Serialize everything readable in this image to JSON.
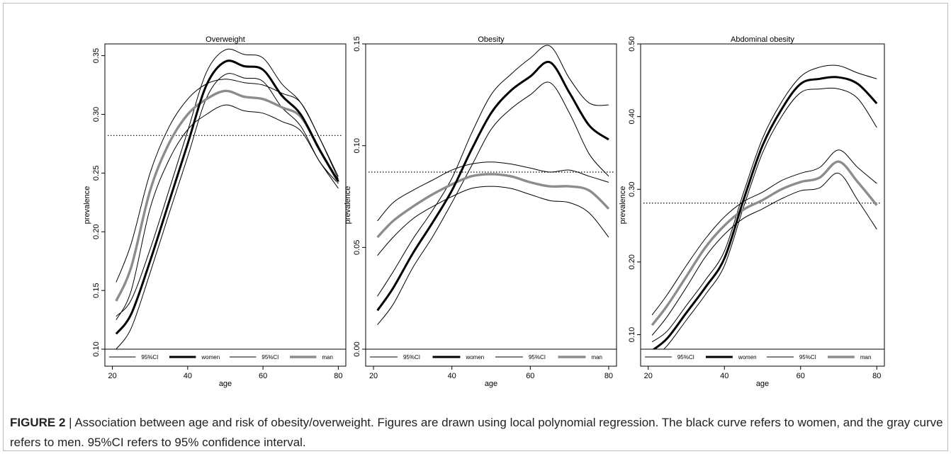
{
  "caption": {
    "label": "FIGURE 2",
    "separator": " | ",
    "text": "Association between age and risk of obesity/overweight. Figures are drawn using local polynomial regression. The black curve refers to women, and the gray curve refers to men. 95%CI refers to 95% confidence interval."
  },
  "colors": {
    "women": "#000000",
    "men": "#8c8c8c",
    "ci": "#000000"
  },
  "legend_labels": [
    "95%CI",
    "women",
    "95%CI",
    "man"
  ],
  "chart_data": [
    {
      "type": "line",
      "title": "Overweight",
      "xlabel": "age",
      "ylabel": "prevalence",
      "xlim": [
        18,
        82
      ],
      "ylim": [
        0.1,
        0.36
      ],
      "xticks": [
        20,
        40,
        60,
        80
      ],
      "yticks": [
        "0.10",
        "0.15",
        "0.20",
        "0.25",
        "0.30",
        "0.35"
      ],
      "reference_line": 0.282,
      "x": [
        21,
        25,
        30,
        35,
        40,
        45,
        50,
        55,
        60,
        65,
        70,
        75,
        80
      ],
      "series": [
        {
          "name": "women",
          "values": [
            0.113,
            0.13,
            0.175,
            0.225,
            0.275,
            0.325,
            0.345,
            0.341,
            0.338,
            0.316,
            0.3,
            0.27,
            0.243
          ]
        },
        {
          "name": "95%CI",
          "group": "women",
          "values": [
            0.128,
            0.142,
            0.185,
            0.235,
            0.286,
            0.336,
            0.355,
            0.351,
            0.348,
            0.326,
            0.31,
            0.28,
            0.245
          ]
        },
        {
          "name": "95%CI",
          "group": "women",
          "values": [
            0.1,
            0.118,
            0.165,
            0.215,
            0.264,
            0.314,
            0.334,
            0.331,
            0.328,
            0.306,
            0.29,
            0.26,
            0.241
          ]
        },
        {
          "name": "man",
          "values": [
            0.141,
            0.17,
            0.235,
            0.275,
            0.3,
            0.313,
            0.32,
            0.315,
            0.313,
            0.306,
            0.298,
            0.27,
            0.242
          ]
        },
        {
          "name": "95%CI",
          "group": "man",
          "values": [
            0.157,
            0.19,
            0.25,
            0.289,
            0.313,
            0.326,
            0.33,
            0.327,
            0.325,
            0.318,
            0.31,
            0.28,
            0.247
          ]
        },
        {
          "name": "95%CI",
          "group": "man",
          "values": [
            0.125,
            0.15,
            0.22,
            0.261,
            0.287,
            0.3,
            0.308,
            0.303,
            0.301,
            0.294,
            0.286,
            0.26,
            0.237
          ]
        }
      ]
    },
    {
      "type": "line",
      "title": "Obesity",
      "xlabel": "age",
      "ylabel": "prevalence",
      "xlim": [
        18,
        82
      ],
      "ylim": [
        0.0,
        0.15
      ],
      "xticks": [
        20,
        40,
        60,
        80
      ],
      "yticks": [
        "0.00",
        "0.05",
        "0.10",
        "0.15"
      ],
      "reference_line": 0.087,
      "x": [
        21,
        25,
        30,
        35,
        40,
        45,
        50,
        55,
        60,
        65,
        70,
        75,
        80
      ],
      "series": [
        {
          "name": "women",
          "values": [
            0.019,
            0.03,
            0.047,
            0.062,
            0.078,
            0.098,
            0.116,
            0.127,
            0.134,
            0.141,
            0.126,
            0.11,
            0.103
          ]
        },
        {
          "name": "95%CI",
          "group": "women",
          "values": [
            0.026,
            0.038,
            0.054,
            0.068,
            0.084,
            0.106,
            0.125,
            0.135,
            0.143,
            0.149,
            0.133,
            0.121,
            0.12
          ]
        },
        {
          "name": "95%CI",
          "group": "women",
          "values": [
            0.012,
            0.022,
            0.04,
            0.055,
            0.072,
            0.09,
            0.108,
            0.118,
            0.125,
            0.131,
            0.116,
            0.096,
            0.085
          ]
        },
        {
          "name": "man",
          "values": [
            0.055,
            0.063,
            0.07,
            0.076,
            0.081,
            0.085,
            0.086,
            0.085,
            0.082,
            0.08,
            0.08,
            0.078,
            0.069
          ]
        },
        {
          "name": "95%CI",
          "group": "man",
          "values": [
            0.063,
            0.072,
            0.078,
            0.083,
            0.088,
            0.091,
            0.092,
            0.091,
            0.089,
            0.087,
            0.088,
            0.085,
            0.082
          ]
        },
        {
          "name": "95%CI",
          "group": "man",
          "values": [
            0.046,
            0.055,
            0.064,
            0.07,
            0.075,
            0.079,
            0.08,
            0.079,
            0.076,
            0.073,
            0.072,
            0.067,
            0.055
          ]
        }
      ]
    },
    {
      "type": "line",
      "title": "Abdominal obesity",
      "xlabel": "age",
      "ylabel": "prevalence",
      "xlim": [
        18,
        82
      ],
      "ylim": [
        0.08,
        0.5
      ],
      "xticks": [
        20,
        40,
        60,
        80
      ],
      "yticks": [
        "0.10",
        "0.20",
        "0.30",
        "0.40",
        "0.50"
      ],
      "reference_line": 0.281,
      "x": [
        21,
        25,
        30,
        35,
        40,
        45,
        50,
        55,
        60,
        65,
        70,
        75,
        80
      ],
      "series": [
        {
          "name": "women",
          "values": [
            0.078,
            0.095,
            0.13,
            0.165,
            0.205,
            0.285,
            0.36,
            0.41,
            0.445,
            0.452,
            0.454,
            0.445,
            0.418
          ]
        },
        {
          "name": "95%CI",
          "group": "women",
          "values": [
            0.09,
            0.105,
            0.14,
            0.175,
            0.215,
            0.295,
            0.37,
            0.42,
            0.455,
            0.468,
            0.47,
            0.46,
            0.452
          ]
        },
        {
          "name": "95%CI",
          "group": "women",
          "values": [
            0.066,
            0.085,
            0.12,
            0.155,
            0.195,
            0.275,
            0.35,
            0.4,
            0.433,
            0.438,
            0.438,
            0.425,
            0.385
          ]
        },
        {
          "name": "man",
          "values": [
            0.113,
            0.14,
            0.18,
            0.22,
            0.25,
            0.272,
            0.285,
            0.3,
            0.31,
            0.316,
            0.338,
            0.31,
            0.278
          ]
        },
        {
          "name": "95%CI",
          "group": "man",
          "values": [
            0.127,
            0.155,
            0.195,
            0.232,
            0.262,
            0.283,
            0.296,
            0.312,
            0.322,
            0.33,
            0.354,
            0.33,
            0.308
          ]
        },
        {
          "name": "95%CI",
          "group": "man",
          "values": [
            0.099,
            0.125,
            0.165,
            0.207,
            0.238,
            0.26,
            0.273,
            0.287,
            0.298,
            0.302,
            0.322,
            0.285,
            0.245
          ]
        }
      ]
    }
  ]
}
